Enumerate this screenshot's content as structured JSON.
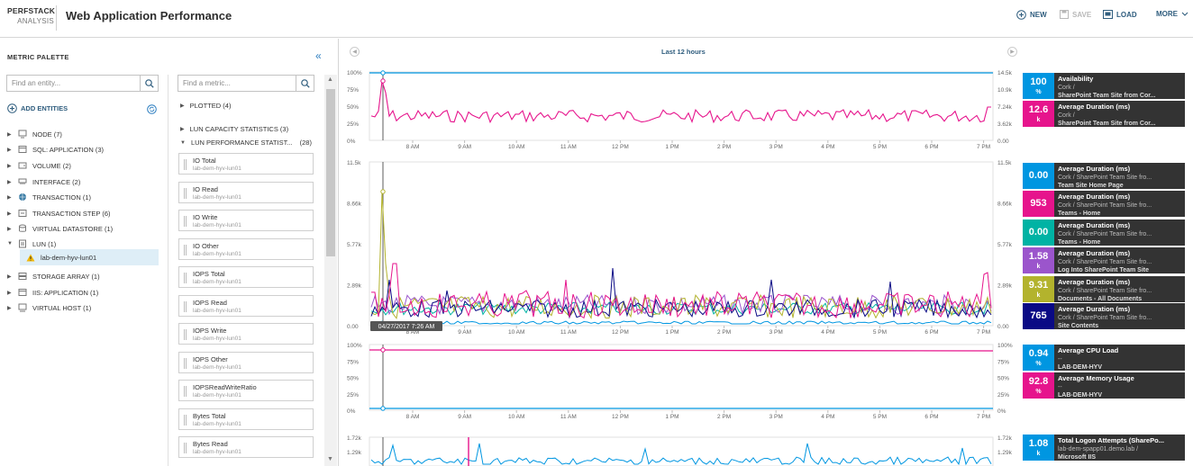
{
  "header": {
    "brand_line1": "PERFSTACK",
    "brand_line2": "ANALYSIS",
    "title": "Web Application Performance",
    "new_label": "NEW",
    "save_label": "SAVE",
    "load_label": "LOAD",
    "more_label": "MORE"
  },
  "palette": {
    "title": "METRIC PALETTE",
    "entity_search_placeholder": "Find an entity...",
    "metric_search_placeholder": "Find a metric...",
    "add_entities_label": "ADD ENTITIES",
    "entities": [
      {
        "label": "NODE (7)",
        "icon": "server-icon"
      },
      {
        "label": "SQL: APPLICATION (3)",
        "icon": "application-icon"
      },
      {
        "label": "VOLUME (2)",
        "icon": "volume-icon"
      },
      {
        "label": "INTERFACE (2)",
        "icon": "interface-icon"
      },
      {
        "label": "TRANSACTION (1)",
        "icon": "globe-icon"
      },
      {
        "label": "TRANSACTION STEP (6)",
        "icon": "step-icon"
      },
      {
        "label": "VIRTUAL DATASTORE (1)",
        "icon": "datastore-icon"
      },
      {
        "label": "LUN (1)",
        "icon": "lun-icon"
      },
      {
        "label": "STORAGE ARRAY (1)",
        "icon": "storage-icon"
      },
      {
        "label": "IIS: APPLICATION (1)",
        "icon": "application-icon"
      },
      {
        "label": "VIRTUAL HOST (1)",
        "icon": "host-icon"
      }
    ],
    "selected_entity": "lab-dem-hyv-lun01",
    "metric_groups": [
      {
        "label": "PLOTTED (4)"
      },
      {
        "label": "LUN CAPACITY STATISTICS (3)"
      },
      {
        "label": "LUN PERFORMANCE STATIST...",
        "count": "(28)"
      }
    ],
    "metrics": [
      {
        "name": "IO Total",
        "entity": "lab-dem-hyv-lun01"
      },
      {
        "name": "IO Read",
        "entity": "lab-dem-hyv-lun01"
      },
      {
        "name": "IO Write",
        "entity": "lab-dem-hyv-lun01"
      },
      {
        "name": "IO Other",
        "entity": "lab-dem-hyv-lun01"
      },
      {
        "name": "IOPS Total",
        "entity": "lab-dem-hyv-lun01"
      },
      {
        "name": "IOPS Read",
        "entity": "lab-dem-hyv-lun01"
      },
      {
        "name": "IOPS Write",
        "entity": "lab-dem-hyv-lun01"
      },
      {
        "name": "IOPS Other",
        "entity": "lab-dem-hyv-lun01"
      },
      {
        "name": "IOPSReadWriteRatio",
        "entity": "lab-dem-hyv-lun01"
      },
      {
        "name": "Bytes Total",
        "entity": "lab-dem-hyv-lun01"
      },
      {
        "name": "Bytes Read",
        "entity": "lab-dem-hyv-lun01"
      }
    ]
  },
  "main": {
    "time_range": "Last 12 hours",
    "cursor_time": "04/27/2017 7:26 AM",
    "x_ticks": [
      "8 AM",
      "9 AM",
      "10 AM",
      "11 AM",
      "12 PM",
      "1 PM",
      "2 PM",
      "3 PM",
      "4 PM",
      "5 PM",
      "6 PM",
      "7 PM"
    ],
    "colors": {
      "blue": "#0096e1",
      "magenta": "#e6148c",
      "teal": "#00b3a4",
      "purple": "#9b55cc",
      "olive": "#b3b32d",
      "navy": "#0a0a85",
      "legend_bg": "#333333"
    }
  },
  "chart_data": [
    {
      "type": "line",
      "y_left_ticks": [
        "100%",
        "75%",
        "50%",
        "25%",
        "0%"
      ],
      "y_right_ticks": [
        "14.5k",
        "10.9k",
        "7.24k",
        "3.62k",
        "0.00"
      ],
      "series": [
        {
          "name": "Availability",
          "axis": "left",
          "color": "#0096e1",
          "legend_value": "100",
          "legend_unit": "%",
          "entity": "Cork /",
          "sub": "SharePoint Team Site from Cor...",
          "values": [
            100,
            100,
            100,
            100,
            100,
            100,
            100,
            100,
            100,
            100,
            100,
            100,
            100
          ]
        },
        {
          "name": "Average Duration (ms)",
          "axis": "right",
          "color": "#e6148c",
          "legend_value": "12.6",
          "legend_unit": "k",
          "entity": "Cork /",
          "sub": "SharePoint Team Site from Cor...",
          "values": [
            4500,
            12600,
            6200,
            5800,
            6000,
            5900,
            6100,
            5800,
            6000,
            6200,
            5900,
            6000,
            7200
          ]
        }
      ]
    },
    {
      "type": "line",
      "y_left_ticks": [
        "11.5k",
        "8.66k",
        "5.77k",
        "2.89k",
        "0.00"
      ],
      "y_right_ticks": [
        "11.5k",
        "8.66k",
        "5.77k",
        "2.89k",
        "0.00"
      ],
      "series": [
        {
          "name": "Average Duration (ms)",
          "color": "#0096e1",
          "legend_value": "0.00",
          "legend_unit": "",
          "entity": "Cork / SharePoint Team Site fro...",
          "sub": "Team Site Home Page"
        },
        {
          "name": "Average Duration (ms)",
          "color": "#e6148c",
          "legend_value": "953",
          "legend_unit": "",
          "entity": "Cork / SharePoint Team Site fro...",
          "sub": "Teams - Home"
        },
        {
          "name": "Average Duration (ms)",
          "color": "#00b3a4",
          "legend_value": "0.00",
          "legend_unit": "",
          "entity": "Cork / SharePoint Team Site fro...",
          "sub": "Teams - Home"
        },
        {
          "name": "Average Duration (ms)",
          "color": "#9b55cc",
          "legend_value": "1.58",
          "legend_unit": "k",
          "entity": "Cork / SharePoint Team Site fro...",
          "sub": "Log Into SharePoint Team Site"
        },
        {
          "name": "Average Duration (ms)",
          "color": "#b3b32d",
          "legend_value": "9.31",
          "legend_unit": "k",
          "entity": "Cork / SharePoint Team Site fro...",
          "sub": "Documents - All Documents"
        },
        {
          "name": "Average Duration (ms)",
          "color": "#0a0a85",
          "legend_value": "765",
          "legend_unit": "",
          "entity": "Cork / SharePoint Team Site fro...",
          "sub": "Site Contents"
        }
      ]
    },
    {
      "type": "line",
      "y_left_ticks": [
        "100%",
        "75%",
        "50%",
        "25%",
        "0%"
      ],
      "y_right_ticks": [
        "100%",
        "75%",
        "50%",
        "25%",
        "0%"
      ],
      "series": [
        {
          "name": "Average CPU Load",
          "color": "#0096e1",
          "legend_value": "0.94",
          "legend_unit": "%",
          "entity": "--",
          "sub": "LAB-DEM-HYV",
          "values": [
            1,
            1,
            1,
            1,
            1,
            1,
            1,
            1,
            1,
            1,
            1,
            1,
            1
          ]
        },
        {
          "name": "Average Memory Usage",
          "color": "#e6148c",
          "legend_value": "92.8",
          "legend_unit": "%",
          "entity": "--",
          "sub": "LAB-DEM-HYV",
          "values": [
            93,
            93,
            93,
            93,
            93,
            93,
            93,
            93,
            93,
            93,
            93,
            93,
            93
          ]
        }
      ]
    },
    {
      "type": "line",
      "y_left_ticks": [
        "1.72k",
        "1.29k"
      ],
      "y_right_ticks": [
        "1.72k",
        "1.29k"
      ],
      "series": [
        {
          "name": "Total Logon Attempts (SharePo...",
          "color": "#0096e1",
          "legend_value": "1.08",
          "legend_unit": "k",
          "entity": "lab-dem-spapp01.demo.lab /",
          "sub": "Microsoft IIS"
        }
      ]
    }
  ]
}
